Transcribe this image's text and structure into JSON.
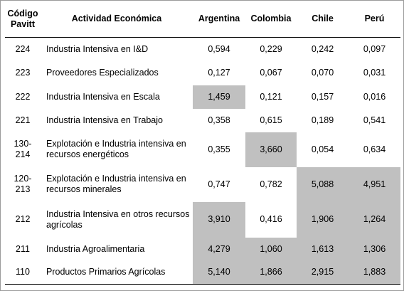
{
  "table": {
    "headers": {
      "code": "Código\nPavitt",
      "activity": "Actividad Económica",
      "argentina": "Argentina",
      "colombia": "Colombia",
      "chile": "Chile",
      "peru": "Perú"
    },
    "rows": [
      {
        "code": "224",
        "activity": "Industria Intensiva en I&D",
        "argentina": "0,594",
        "colombia": "0,229",
        "chile": "0,242",
        "peru": "0,097",
        "highlight": []
      },
      {
        "code": "223",
        "activity": "Proveedores Especializados",
        "argentina": "0,127",
        "colombia": "0,067",
        "chile": "0,070",
        "peru": "0,031",
        "highlight": []
      },
      {
        "code": "222",
        "activity": "Industria Intensiva en Escala",
        "argentina": "1,459",
        "colombia": "0,121",
        "chile": "0,157",
        "peru": "0,016",
        "highlight": [
          "argentina"
        ]
      },
      {
        "code": "221",
        "activity": "Industria Intensiva en Trabajo",
        "argentina": "0,358",
        "colombia": "0,615",
        "chile": "0,189",
        "peru": "0,541",
        "highlight": []
      },
      {
        "code": "130-\n214",
        "activity": "Explotación e Industria intensiva en recursos energéticos",
        "argentina": "0,355",
        "colombia": "3,660",
        "chile": "0,054",
        "peru": "0,634",
        "highlight": [
          "colombia"
        ]
      },
      {
        "code": "120-\n213",
        "activity": "Explotación e Industria intensiva en recursos minerales",
        "argentina": "0,747",
        "colombia": "0,782",
        "chile": "5,088",
        "peru": "4,951",
        "highlight": [
          "chile",
          "peru"
        ]
      },
      {
        "code": "212",
        "activity": "Industria Intensiva en otros recursos agrícolas",
        "argentina": "3,910",
        "colombia": "0,416",
        "chile": "1,906",
        "peru": "1,264",
        "highlight": [
          "argentina",
          "chile",
          "peru"
        ]
      },
      {
        "code": "211",
        "activity": "Industria Agroalimentaria",
        "argentina": "4,279",
        "colombia": "1,060",
        "chile": "1,613",
        "peru": "1,306",
        "highlight": [
          "argentina",
          "colombia",
          "chile",
          "peru"
        ]
      },
      {
        "code": "110",
        "activity": "Productos Primarios Agrícolas",
        "argentina": "5,140",
        "colombia": "1,866",
        "chile": "2,915",
        "peru": "1,883",
        "highlight": [
          "argentina",
          "colombia",
          "chile",
          "peru"
        ]
      }
    ]
  }
}
